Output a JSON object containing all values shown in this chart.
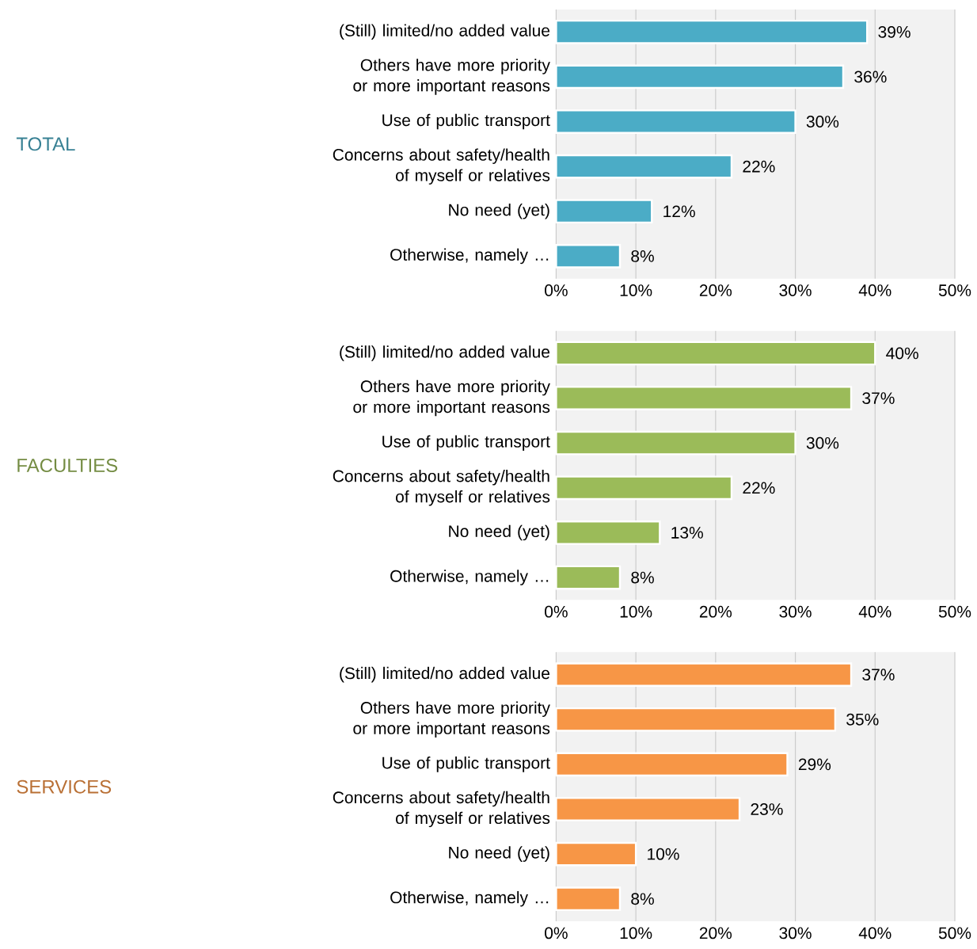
{
  "chart_data": [
    {
      "type": "bar",
      "orientation": "horizontal",
      "ylabel": "TOTAL",
      "categories": [
        "(Still) limited/no added value",
        "Others have more priority or more important reasons",
        "Use of public transport",
        "Concerns about safety/health of myself or relatives",
        "No need (yet)",
        "Otherwise, namely …"
      ],
      "values": [
        39,
        36,
        30,
        22,
        12,
        8
      ],
      "value_labels": [
        "39%",
        "36%",
        "30%",
        "22%",
        "12%",
        "8%"
      ],
      "color": "#4bacc6",
      "xlim": [
        0,
        50
      ],
      "xticks": [
        {
          "value": 0,
          "label": "0%"
        },
        {
          "value": 10,
          "label": "10%"
        },
        {
          "value": 20,
          "label": "20%"
        },
        {
          "value": 30,
          "label": "30%"
        },
        {
          "value": 40,
          "label": "40%"
        },
        {
          "value": 50,
          "label": "50%"
        }
      ],
      "grid": "x"
    },
    {
      "type": "bar",
      "orientation": "horizontal",
      "ylabel": "FACULTIES",
      "categories": [
        "(Still) limited/no added value",
        "Others have more priority or more important reasons",
        "Use of public transport",
        "Concerns about safety/health of myself or relatives",
        "No need (yet)",
        "Otherwise, namely …"
      ],
      "values": [
        40,
        37,
        30,
        22,
        13,
        8
      ],
      "value_labels": [
        "40%",
        "37%",
        "30%",
        "22%",
        "13%",
        "8%"
      ],
      "color": "#9bbb59",
      "xlim": [
        0,
        50
      ],
      "xticks": [
        {
          "value": 0,
          "label": "0%"
        },
        {
          "value": 10,
          "label": "10%"
        },
        {
          "value": 20,
          "label": "20%"
        },
        {
          "value": 30,
          "label": "30%"
        },
        {
          "value": 40,
          "label": "40%"
        },
        {
          "value": 50,
          "label": "50%"
        }
      ],
      "grid": "x"
    },
    {
      "type": "bar",
      "orientation": "horizontal",
      "ylabel": "SERVICES",
      "categories": [
        "(Still) limited/no added value",
        "Others have more priority or more important reasons",
        "Use of public transport",
        "Concerns about safety/health of myself or relatives",
        "No need (yet)",
        "Otherwise, namely …"
      ],
      "values": [
        37,
        35,
        29,
        23,
        10,
        8
      ],
      "value_labels": [
        "37%",
        "35%",
        "29%",
        "23%",
        "10%",
        "8%"
      ],
      "color": "#f79646",
      "xlim": [
        0,
        50
      ],
      "xticks": [
        {
          "value": 0,
          "label": "0%"
        },
        {
          "value": 10,
          "label": "10%"
        },
        {
          "value": 20,
          "label": "20%"
        },
        {
          "value": 30,
          "label": "30%"
        },
        {
          "value": 40,
          "label": "40%"
        },
        {
          "value": 50,
          "label": "50%"
        }
      ],
      "grid": "x"
    }
  ]
}
